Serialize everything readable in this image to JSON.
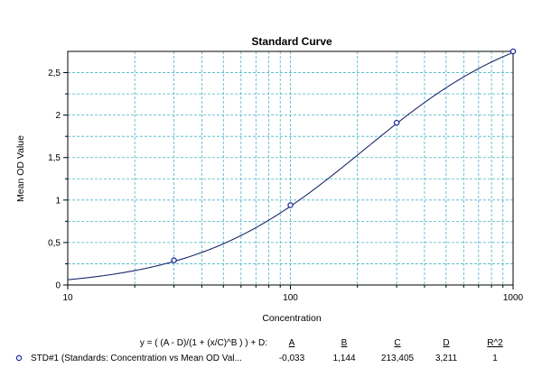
{
  "chart_data": {
    "type": "scatter",
    "title": "Standard Curve",
    "xlabel": "Concentration",
    "ylabel": "Mean OD Value",
    "x_scale": "log",
    "xlim": [
      10,
      1000
    ],
    "ylim": [
      0,
      2.75
    ],
    "x_ticks": [
      10,
      100,
      1000
    ],
    "x_tick_labels": [
      "10",
      "100",
      "1000"
    ],
    "y_ticks": [
      0,
      0.5,
      1,
      1.5,
      2,
      2.5
    ],
    "y_tick_labels": [
      "0",
      "0,5",
      "1",
      "1,5",
      "2",
      "2,5"
    ],
    "grid": true,
    "series": [
      {
        "name": "STD#1 (Standards: Concentration vs Mean OD Val...",
        "points": [
          {
            "x": 30,
            "y": 0.29
          },
          {
            "x": 100,
            "y": 0.94
          },
          {
            "x": 300,
            "y": 1.91
          },
          {
            "x": 1000,
            "y": 2.75
          }
        ],
        "fit": {
          "model": "4PL",
          "A": -0.033,
          "B": 1.144,
          "C": 213.405,
          "D": 3.211
        }
      }
    ],
    "equation": "y = ( (A - D)/(1 + (x/C)^B ) ) + D:",
    "param_headers": [
      "A",
      "B",
      "C",
      "D",
      "R^2"
    ],
    "param_values": [
      "-0,033",
      "1,144",
      "213,405",
      "3,211",
      "1"
    ],
    "colors": {
      "grid": "#46b4c8",
      "curve": "#1c2a6e",
      "marker": "#1c2aa0",
      "axis": "#000000"
    }
  }
}
